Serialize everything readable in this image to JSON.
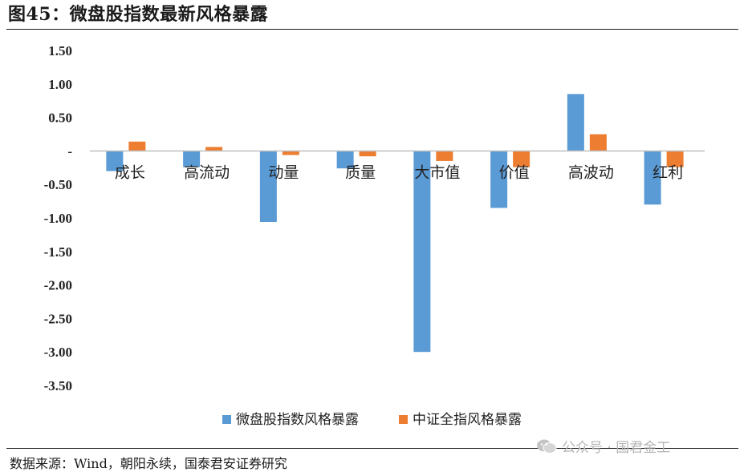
{
  "figure": {
    "title": "图45：微盘股指数最新风格暴露",
    "source": "数据来源：Wind，朝阳永续，国泰君安证券研究",
    "watermark": "公众号 · 国君金工"
  },
  "chart_data": {
    "type": "bar",
    "categories": [
      "成长",
      "高流动",
      "动量",
      "质量",
      "大市值",
      "价值",
      "高波动",
      "红利"
    ],
    "series": [
      {
        "name": "微盘股指数风格暴露",
        "color": "#5b9bd5",
        "values": [
          -0.3,
          -0.24,
          -1.06,
          -0.26,
          -3.0,
          -0.85,
          0.85,
          -0.8
        ]
      },
      {
        "name": "中证全指风格暴露",
        "color": "#ed7d31",
        "values": [
          0.14,
          0.06,
          -0.06,
          -0.08,
          -0.15,
          -0.24,
          0.25,
          -0.24
        ]
      }
    ],
    "ylim": [
      -3.5,
      1.5
    ],
    "yticks": [
      1.5,
      1.0,
      0.5,
      0,
      -0.5,
      -1.0,
      -1.5,
      -2.0,
      -2.5,
      -3.0,
      -3.5
    ],
    "ytick_labels": [
      "1.50",
      "1.00",
      "0.50",
      "-",
      "-0.50",
      "-1.00",
      "-1.50",
      "-2.00",
      "-2.50",
      "-3.00",
      "-3.50"
    ],
    "grid": false,
    "legend_position": "bottom"
  }
}
